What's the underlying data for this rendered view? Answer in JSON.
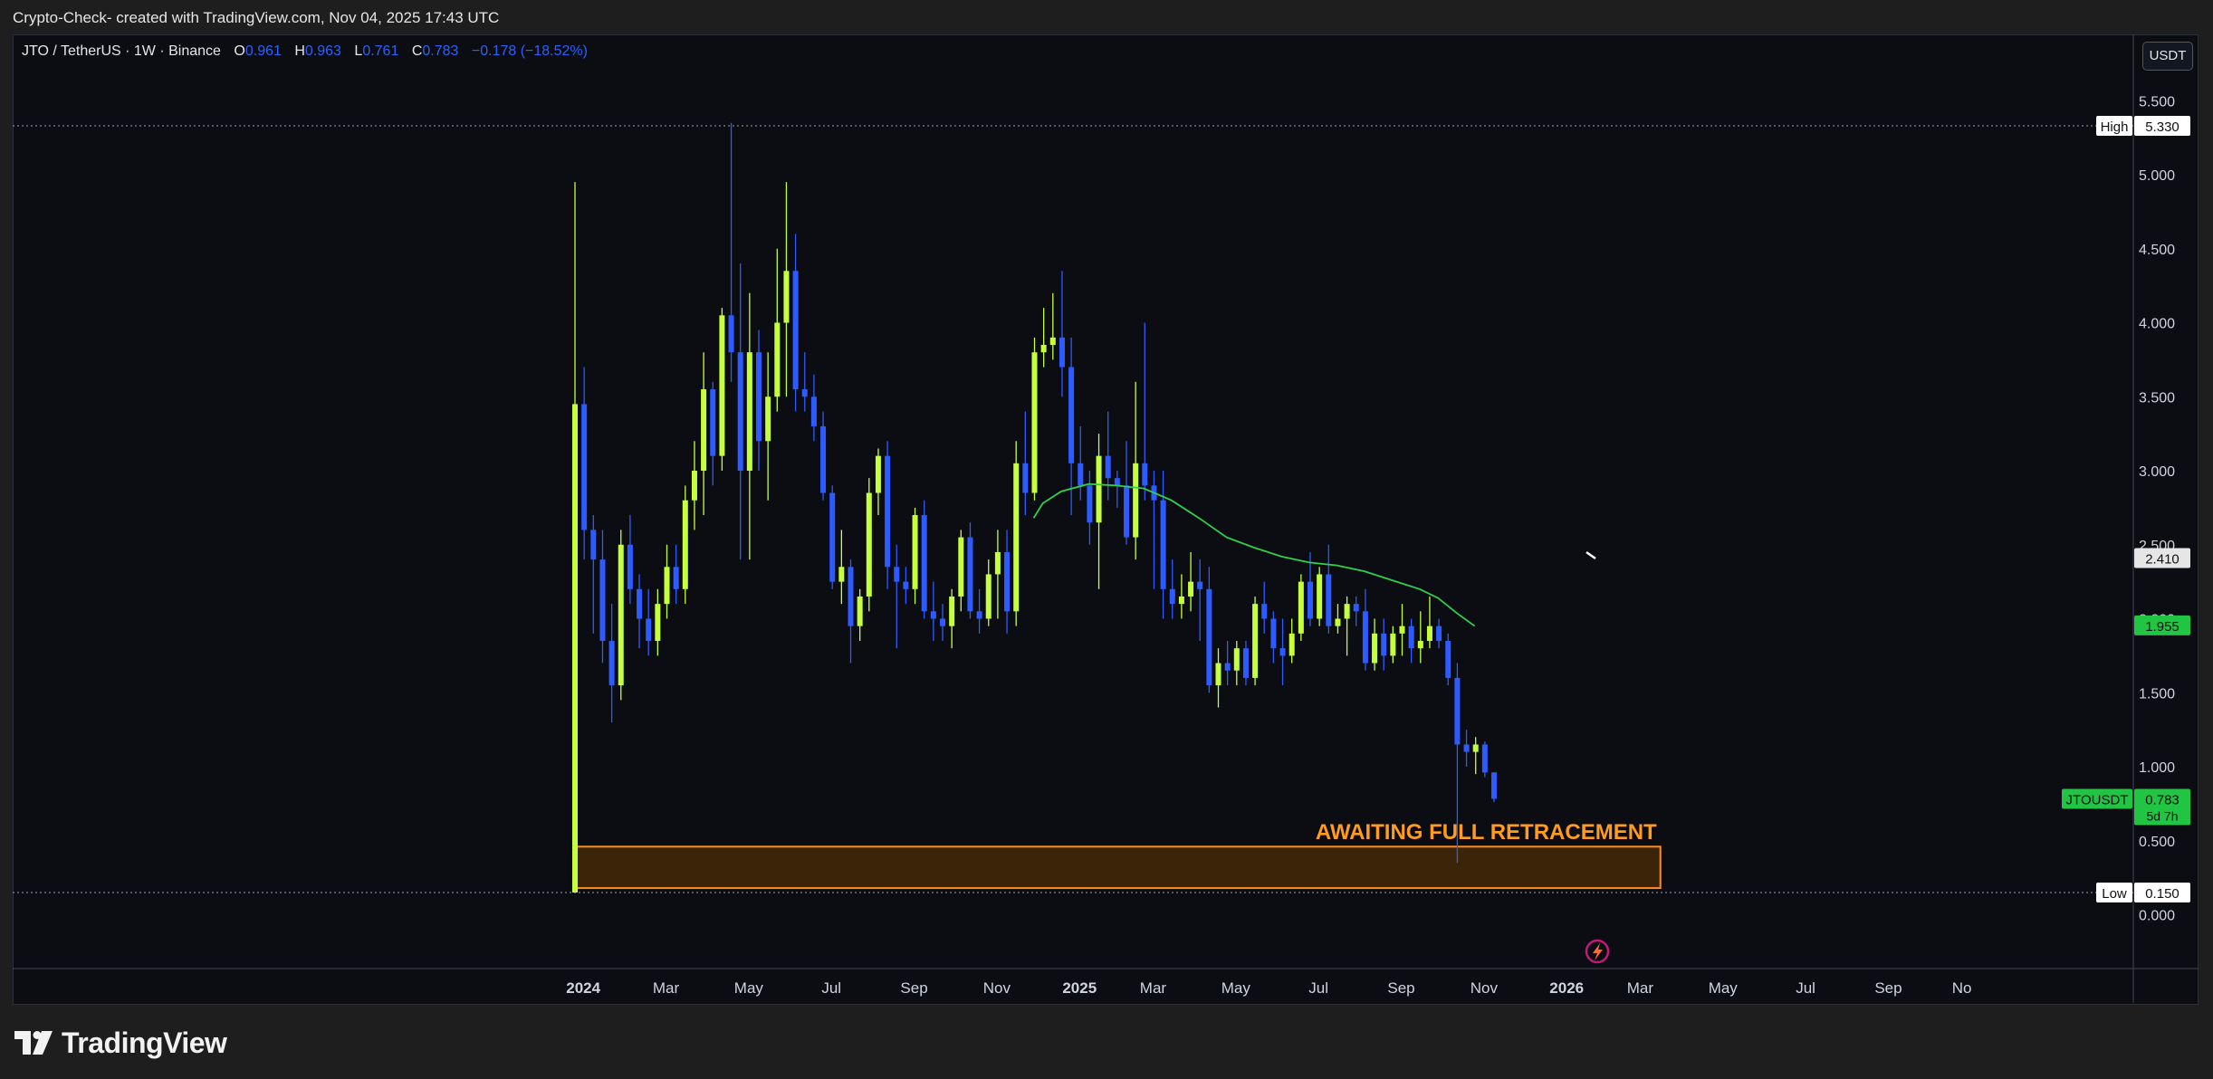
{
  "header": {
    "caption": "Crypto-Check- created with TradingView.com, Nov 04, 2025 17:43 UTC"
  },
  "legend": {
    "symbol": "JTO / TetherUS · 1W · Binance",
    "o_label": "O",
    "o_value": "0.961",
    "h_label": "H",
    "h_value": "0.963",
    "l_label": "L",
    "l_value": "0.761",
    "c_label": "C",
    "c_value": "0.783",
    "change": "−0.178 (−18.52%)"
  },
  "currency_button": "USDT",
  "brand": {
    "name": "TradingView"
  },
  "colors": {
    "bull": "#c6ff3d",
    "bear": "#2d5bff",
    "ma": "#2fd14a",
    "zone_fill": "#3a2508",
    "zone_border": "#ff8c1a",
    "annotation": "#ff9b1f",
    "background": "#0b0d12"
  },
  "icons": [
    "tradingview-logo-icon",
    "lightning-icon"
  ],
  "chart_data": {
    "type": "candlestick",
    "timeframe": "1W",
    "ylim": [
      -0.3,
      5.9
    ],
    "y_ticks": [
      "5.500",
      "5.000",
      "4.500",
      "4.000",
      "3.500",
      "3.000",
      "2.500",
      "2.000",
      "1.500",
      "1.000",
      "0.500",
      "0.000"
    ],
    "x_ticks": [
      {
        "label": "2024",
        "week": 1
      },
      {
        "label": "Mar",
        "week": 10
      },
      {
        "label": "May",
        "week": 19
      },
      {
        "label": "Jul",
        "week": 28
      },
      {
        "label": "Sep",
        "week": 37
      },
      {
        "label": "Nov",
        "week": 46
      },
      {
        "label": "2025",
        "week": 55
      },
      {
        "label": "Mar",
        "week": 63
      },
      {
        "label": "May",
        "week": 72
      },
      {
        "label": "Jul",
        "week": 81
      },
      {
        "label": "Sep",
        "week": 90
      },
      {
        "label": "Nov",
        "week": 99
      },
      {
        "label": "2026",
        "week": 108
      },
      {
        "label": "Mar",
        "week": 116
      },
      {
        "label": "May",
        "week": 125
      },
      {
        "label": "Jul",
        "week": 134
      },
      {
        "label": "Sep",
        "week": 143
      },
      {
        "label": "No",
        "week": 151
      }
    ],
    "candles": [
      {
        "o": 0.15,
        "h": 4.95,
        "l": 0.15,
        "c": 3.45
      },
      {
        "o": 3.45,
        "h": 3.7,
        "l": 2.4,
        "c": 2.6
      },
      {
        "o": 2.6,
        "h": 2.7,
        "l": 1.9,
        "c": 2.4
      },
      {
        "o": 2.4,
        "h": 2.6,
        "l": 1.7,
        "c": 1.85
      },
      {
        "o": 1.85,
        "h": 2.1,
        "l": 1.3,
        "c": 1.55
      },
      {
        "o": 1.55,
        "h": 2.6,
        "l": 1.45,
        "c": 2.5
      },
      {
        "o": 2.5,
        "h": 2.7,
        "l": 2.1,
        "c": 2.2
      },
      {
        "o": 2.2,
        "h": 2.3,
        "l": 1.8,
        "c": 2.0
      },
      {
        "o": 2.0,
        "h": 2.2,
        "l": 1.75,
        "c": 1.85
      },
      {
        "o": 1.85,
        "h": 2.2,
        "l": 1.75,
        "c": 2.1
      },
      {
        "o": 2.1,
        "h": 2.5,
        "l": 2.0,
        "c": 2.35
      },
      {
        "o": 2.35,
        "h": 2.5,
        "l": 2.1,
        "c": 2.2
      },
      {
        "o": 2.2,
        "h": 2.9,
        "l": 2.1,
        "c": 2.8
      },
      {
        "o": 2.8,
        "h": 3.2,
        "l": 2.6,
        "c": 3.0
      },
      {
        "o": 3.0,
        "h": 3.8,
        "l": 2.7,
        "c": 3.55
      },
      {
        "o": 3.55,
        "h": 3.6,
        "l": 2.9,
        "c": 3.1
      },
      {
        "o": 3.1,
        "h": 4.1,
        "l": 3.0,
        "c": 4.05
      },
      {
        "o": 4.05,
        "h": 5.35,
        "l": 3.6,
        "c": 3.8
      },
      {
        "o": 3.8,
        "h": 4.4,
        "l": 2.4,
        "c": 3.0
      },
      {
        "o": 3.0,
        "h": 4.2,
        "l": 2.4,
        "c": 3.8
      },
      {
        "o": 3.8,
        "h": 3.95,
        "l": 3.0,
        "c": 3.2
      },
      {
        "o": 3.2,
        "h": 3.8,
        "l": 2.8,
        "c": 3.5
      },
      {
        "o": 3.5,
        "h": 4.5,
        "l": 3.4,
        "c": 4.0
      },
      {
        "o": 4.0,
        "h": 4.95,
        "l": 3.5,
        "c": 4.35
      },
      {
        "o": 4.35,
        "h": 4.6,
        "l": 3.4,
        "c": 3.55
      },
      {
        "o": 3.55,
        "h": 3.8,
        "l": 3.4,
        "c": 3.5
      },
      {
        "o": 3.5,
        "h": 3.65,
        "l": 3.2,
        "c": 3.3
      },
      {
        "o": 3.3,
        "h": 3.4,
        "l": 2.8,
        "c": 2.85
      },
      {
        "o": 2.85,
        "h": 2.9,
        "l": 2.2,
        "c": 2.25
      },
      {
        "o": 2.25,
        "h": 2.6,
        "l": 2.1,
        "c": 2.35
      },
      {
        "o": 2.35,
        "h": 2.4,
        "l": 1.7,
        "c": 1.95
      },
      {
        "o": 1.95,
        "h": 2.2,
        "l": 1.85,
        "c": 2.15
      },
      {
        "o": 2.15,
        "h": 2.95,
        "l": 2.05,
        "c": 2.85
      },
      {
        "o": 2.85,
        "h": 3.15,
        "l": 2.7,
        "c": 3.1
      },
      {
        "o": 3.1,
        "h": 3.2,
        "l": 2.2,
        "c": 2.35
      },
      {
        "o": 2.35,
        "h": 2.5,
        "l": 1.8,
        "c": 2.25
      },
      {
        "o": 2.25,
        "h": 2.35,
        "l": 2.1,
        "c": 2.2
      },
      {
        "o": 2.2,
        "h": 2.75,
        "l": 2.1,
        "c": 2.7
      },
      {
        "o": 2.7,
        "h": 2.8,
        "l": 2.0,
        "c": 2.05
      },
      {
        "o": 2.05,
        "h": 2.25,
        "l": 1.85,
        "c": 2.0
      },
      {
        "o": 2.0,
        "h": 2.1,
        "l": 1.85,
        "c": 1.95
      },
      {
        "o": 1.95,
        "h": 2.2,
        "l": 1.8,
        "c": 2.15
      },
      {
        "o": 2.15,
        "h": 2.6,
        "l": 2.05,
        "c": 2.55
      },
      {
        "o": 2.55,
        "h": 2.65,
        "l": 2.0,
        "c": 2.05
      },
      {
        "o": 2.05,
        "h": 2.2,
        "l": 1.9,
        "c": 2.0
      },
      {
        "o": 2.0,
        "h": 2.4,
        "l": 1.95,
        "c": 2.3
      },
      {
        "o": 2.3,
        "h": 2.6,
        "l": 2.0,
        "c": 2.45
      },
      {
        "o": 2.45,
        "h": 2.6,
        "l": 1.9,
        "c": 2.05
      },
      {
        "o": 2.05,
        "h": 3.2,
        "l": 1.95,
        "c": 3.05
      },
      {
        "o": 3.05,
        "h": 3.4,
        "l": 2.7,
        "c": 2.85
      },
      {
        "o": 2.85,
        "h": 3.9,
        "l": 2.8,
        "c": 3.8
      },
      {
        "o": 3.8,
        "h": 4.1,
        "l": 3.7,
        "c": 3.85
      },
      {
        "o": 3.85,
        "h": 4.2,
        "l": 3.75,
        "c": 3.9
      },
      {
        "o": 3.9,
        "h": 4.35,
        "l": 3.5,
        "c": 3.7
      },
      {
        "o": 3.7,
        "h": 3.9,
        "l": 2.7,
        "c": 3.05
      },
      {
        "o": 3.05,
        "h": 3.3,
        "l": 2.8,
        "c": 2.9
      },
      {
        "o": 2.9,
        "h": 3.0,
        "l": 2.5,
        "c": 2.65
      },
      {
        "o": 2.65,
        "h": 3.25,
        "l": 2.2,
        "c": 3.1
      },
      {
        "o": 3.1,
        "h": 3.4,
        "l": 2.8,
        "c": 2.95
      },
      {
        "o": 2.95,
        "h": 3.0,
        "l": 2.75,
        "c": 2.9
      },
      {
        "o": 2.9,
        "h": 3.2,
        "l": 2.5,
        "c": 2.55
      },
      {
        "o": 2.55,
        "h": 3.6,
        "l": 2.4,
        "c": 3.05
      },
      {
        "o": 3.05,
        "h": 4.0,
        "l": 2.8,
        "c": 2.9
      },
      {
        "o": 2.9,
        "h": 3.0,
        "l": 2.2,
        "c": 2.8
      },
      {
        "o": 2.8,
        "h": 3.0,
        "l": 2.0,
        "c": 2.2
      },
      {
        "o": 2.2,
        "h": 2.4,
        "l": 2.0,
        "c": 2.1
      },
      {
        "o": 2.1,
        "h": 2.3,
        "l": 2.0,
        "c": 2.15
      },
      {
        "o": 2.15,
        "h": 2.45,
        "l": 2.05,
        "c": 2.25
      },
      {
        "o": 2.25,
        "h": 2.4,
        "l": 1.85,
        "c": 2.2
      },
      {
        "o": 2.2,
        "h": 2.35,
        "l": 1.5,
        "c": 1.55
      },
      {
        "o": 1.55,
        "h": 1.8,
        "l": 1.4,
        "c": 1.7
      },
      {
        "o": 1.7,
        "h": 1.85,
        "l": 1.55,
        "c": 1.65
      },
      {
        "o": 1.65,
        "h": 1.85,
        "l": 1.55,
        "c": 1.8
      },
      {
        "o": 1.8,
        "h": 1.85,
        "l": 1.55,
        "c": 1.6
      },
      {
        "o": 1.6,
        "h": 2.15,
        "l": 1.55,
        "c": 2.1
      },
      {
        "o": 2.1,
        "h": 2.25,
        "l": 1.9,
        "c": 2.0
      },
      {
        "o": 2.0,
        "h": 2.05,
        "l": 1.7,
        "c": 1.8
      },
      {
        "o": 1.8,
        "h": 2.0,
        "l": 1.55,
        "c": 1.75
      },
      {
        "o": 1.75,
        "h": 2.0,
        "l": 1.7,
        "c": 1.9
      },
      {
        "o": 1.9,
        "h": 2.3,
        "l": 1.85,
        "c": 2.25
      },
      {
        "o": 2.25,
        "h": 2.45,
        "l": 1.95,
        "c": 2.0
      },
      {
        "o": 2.0,
        "h": 2.35,
        "l": 1.95,
        "c": 2.3
      },
      {
        "o": 2.3,
        "h": 2.5,
        "l": 1.9,
        "c": 1.95
      },
      {
        "o": 1.95,
        "h": 2.1,
        "l": 1.9,
        "c": 2.0
      },
      {
        "o": 2.0,
        "h": 2.15,
        "l": 1.75,
        "c": 2.1
      },
      {
        "o": 2.1,
        "h": 2.15,
        "l": 1.95,
        "c": 2.05
      },
      {
        "o": 2.05,
        "h": 2.2,
        "l": 1.65,
        "c": 1.7
      },
      {
        "o": 1.7,
        "h": 2.0,
        "l": 1.65,
        "c": 1.9
      },
      {
        "o": 1.9,
        "h": 2.0,
        "l": 1.65,
        "c": 1.75
      },
      {
        "o": 1.75,
        "h": 1.95,
        "l": 1.7,
        "c": 1.9
      },
      {
        "o": 1.9,
        "h": 2.1,
        "l": 1.75,
        "c": 1.95
      },
      {
        "o": 1.95,
        "h": 2.0,
        "l": 1.7,
        "c": 1.8
      },
      {
        "o": 1.8,
        "h": 2.05,
        "l": 1.7,
        "c": 1.85
      },
      {
        "o": 1.85,
        "h": 2.15,
        "l": 1.8,
        "c": 1.95
      },
      {
        "o": 1.95,
        "h": 2.0,
        "l": 1.8,
        "c": 1.85
      },
      {
        "o": 1.85,
        "h": 1.9,
        "l": 1.55,
        "c": 1.6
      },
      {
        "o": 1.6,
        "h": 1.7,
        "l": 0.35,
        "c": 1.15
      },
      {
        "o": 1.15,
        "h": 1.25,
        "l": 1.0,
        "c": 1.1
      },
      {
        "o": 1.1,
        "h": 1.2,
        "l": 0.95,
        "c": 1.15
      },
      {
        "o": 1.15,
        "h": 1.17,
        "l": 0.93,
        "c": 0.961
      },
      {
        "o": 0.961,
        "h": 0.963,
        "l": 0.761,
        "c": 0.783
      }
    ],
    "moving_average": [
      {
        "week": 50,
        "value": 2.68
      },
      {
        "week": 51,
        "value": 2.78
      },
      {
        "week": 53,
        "value": 2.86
      },
      {
        "week": 56,
        "value": 2.91
      },
      {
        "week": 59,
        "value": 2.9
      },
      {
        "week": 62,
        "value": 2.88
      },
      {
        "week": 65,
        "value": 2.8
      },
      {
        "week": 68,
        "value": 2.68
      },
      {
        "week": 71,
        "value": 2.55
      },
      {
        "week": 74,
        "value": 2.48
      },
      {
        "week": 77,
        "value": 2.42
      },
      {
        "week": 80,
        "value": 2.38
      },
      {
        "week": 83,
        "value": 2.36
      },
      {
        "week": 86,
        "value": 2.32
      },
      {
        "week": 89,
        "value": 2.26
      },
      {
        "week": 92,
        "value": 2.2
      },
      {
        "week": 94,
        "value": 2.14
      },
      {
        "week": 96,
        "value": 2.04
      },
      {
        "week": 98,
        "value": 1.95
      }
    ],
    "high": {
      "label": "High",
      "value": "5.330",
      "y": 5.33
    },
    "low": {
      "label": "Low",
      "value": "0.150",
      "y": 0.15
    },
    "price_tags": [
      {
        "value": "2.410",
        "y": 2.41,
        "style": "grey"
      },
      {
        "value": "1.955",
        "y": 1.955,
        "style": "green"
      }
    ],
    "last_price": {
      "symbol": "JTOUSDT",
      "value": "0.783",
      "countdown": "5d 7h",
      "y": 0.783
    },
    "zone": {
      "y_low": 0.18,
      "y_high": 0.46,
      "week_start": 0,
      "week_end": 118
    },
    "annotation": "AWAITING FULL RETRACEMENT",
    "annotation_y": 0.56
  }
}
